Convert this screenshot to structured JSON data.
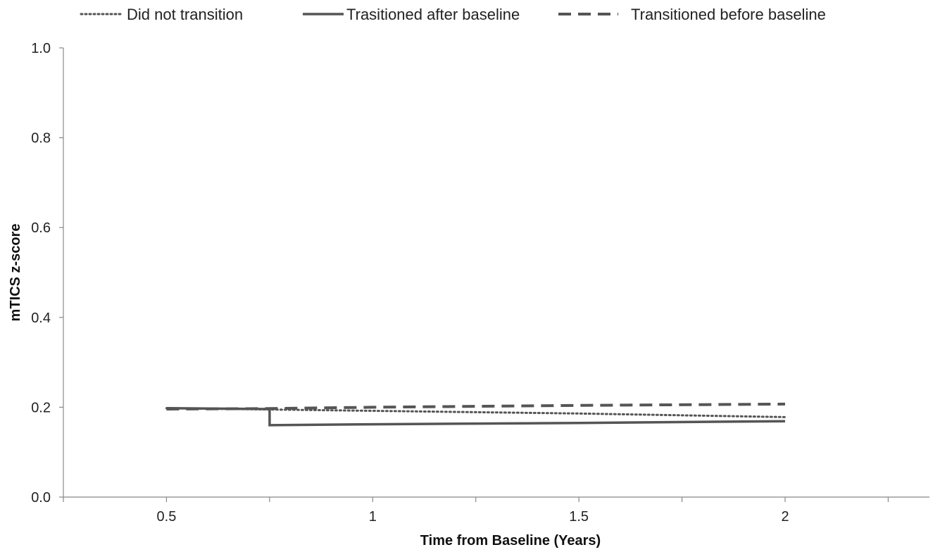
{
  "chart_data": {
    "type": "line",
    "title": "",
    "xlabel": "Time from Baseline (Years)",
    "ylabel": "mTICS z-score",
    "xlim": [
      0.25,
      2.35
    ],
    "ylim": [
      0.0,
      1.0
    ],
    "x_ticks": [
      0.5,
      1,
      1.5,
      2
    ],
    "x_tick_labels": [
      "0.5",
      "1",
      "1.5",
      "2"
    ],
    "y_ticks": [
      0.0,
      0.2,
      0.4,
      0.6,
      0.8,
      1.0
    ],
    "y_tick_labels": [
      "0.0",
      "0.2",
      "0.4",
      "0.6",
      "0.8",
      "1.0"
    ],
    "grid": false,
    "legend_position": "top",
    "color": "#555555",
    "series": [
      {
        "name": "Did not transition",
        "style": "dotted",
        "points": [
          [
            0.5,
            0.198
          ],
          [
            1.0,
            0.192
          ],
          [
            1.5,
            0.186
          ],
          [
            2.0,
            0.178
          ]
        ]
      },
      {
        "name": "Trasitioned after baseline",
        "style": "solid",
        "points": [
          [
            0.5,
            0.198
          ],
          [
            0.75,
            0.196
          ],
          [
            0.75,
            0.16
          ],
          [
            1.0,
            0.162
          ],
          [
            1.5,
            0.165
          ],
          [
            2.0,
            0.169
          ]
        ]
      },
      {
        "name": "Transitioned before baseline",
        "style": "dashed",
        "points": [
          [
            0.5,
            0.196
          ],
          [
            0.75,
            0.197
          ],
          [
            1.0,
            0.2
          ],
          [
            1.5,
            0.204
          ],
          [
            2.0,
            0.207
          ]
        ]
      }
    ]
  }
}
